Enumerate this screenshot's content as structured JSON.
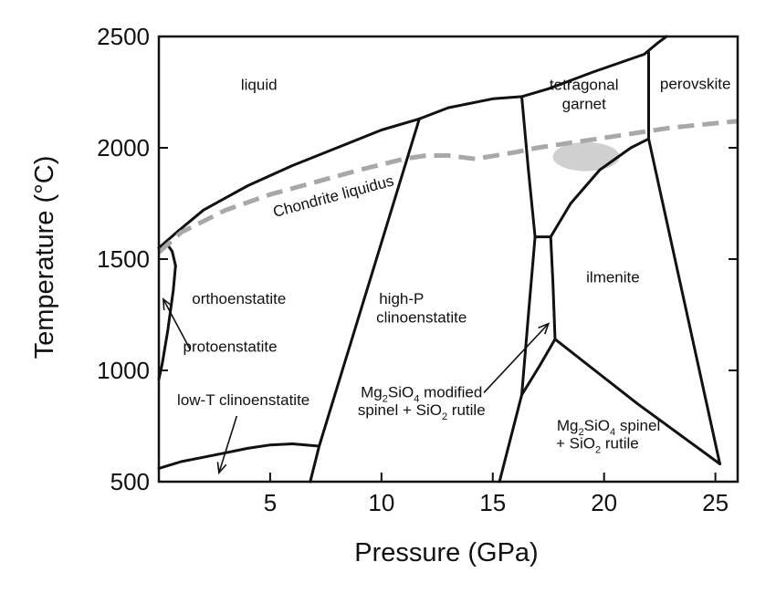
{
  "chart_data": {
    "type": "phase-diagram",
    "xlabel": "Pressure (GPa)",
    "ylabel": "Temperature (°C)",
    "xlim": [
      0,
      26
    ],
    "ylim": [
      500,
      2500
    ],
    "xticks": [
      5,
      10,
      15,
      20,
      25
    ],
    "yticks": [
      500,
      1000,
      1500,
      2000,
      2500
    ],
    "boundaries": [
      {
        "name": "liquidus",
        "points": [
          [
            0,
            1550
          ],
          [
            0.8,
            1620
          ],
          [
            2,
            1720
          ],
          [
            4,
            1830
          ],
          [
            6,
            1920
          ],
          [
            8,
            2000
          ],
          [
            10,
            2080
          ],
          [
            11.7,
            2130
          ],
          [
            13,
            2180
          ],
          [
            15,
            2220
          ],
          [
            16.3,
            2230
          ],
          [
            17.5,
            2265
          ],
          [
            19.5,
            2340
          ],
          [
            21.8,
            2420
          ],
          [
            22.4,
            2470
          ],
          [
            22.8,
            2500
          ]
        ]
      },
      {
        "name": "proto-ortho-upper",
        "points": [
          [
            0,
            1550
          ],
          [
            0.35,
            1570
          ],
          [
            0.6,
            1535
          ],
          [
            0.75,
            1470
          ]
        ]
      },
      {
        "name": "proto-ortho-lower",
        "points": [
          [
            0.75,
            1470
          ],
          [
            0.65,
            1360
          ],
          [
            0.4,
            1180
          ],
          [
            0.15,
            1030
          ],
          [
            0,
            960
          ]
        ]
      },
      {
        "name": "lowT-clino",
        "points": [
          [
            0,
            560
          ],
          [
            1,
            590
          ],
          [
            2,
            610
          ],
          [
            3,
            630
          ],
          [
            4,
            650
          ],
          [
            5,
            665
          ],
          [
            6,
            670
          ],
          [
            7.2,
            660
          ]
        ]
      },
      {
        "name": "ortho-highP",
        "points": [
          [
            6.8,
            500
          ],
          [
            7.2,
            660
          ],
          [
            11.7,
            2130
          ]
        ]
      },
      {
        "name": "highP-garnet",
        "points": [
          [
            16.3,
            2230
          ],
          [
            16.6,
            1900
          ],
          [
            16.9,
            1600
          ]
        ]
      },
      {
        "name": "highP-modified-spinel",
        "points": [
          [
            16.9,
            1600
          ],
          [
            16.6,
            1250
          ],
          [
            16.3,
            890
          ]
        ]
      },
      {
        "name": "modified-spinel-top",
        "points": [
          [
            16.9,
            1600
          ],
          [
            17.6,
            1600
          ]
        ]
      },
      {
        "name": "garnet-ilmenite",
        "points": [
          [
            17.6,
            1600
          ],
          [
            18.5,
            1750
          ],
          [
            19.8,
            1900
          ],
          [
            21.2,
            2000
          ],
          [
            22,
            2040
          ]
        ]
      },
      {
        "name": "modified-spinel-ilmenite",
        "points": [
          [
            17.6,
            1600
          ],
          [
            17.7,
            1400
          ],
          [
            17.8,
            1140
          ]
        ]
      },
      {
        "name": "modified-spinel-spinel",
        "points": [
          [
            16.3,
            890
          ],
          [
            17.1,
            1020
          ],
          [
            17.8,
            1140
          ]
        ]
      },
      {
        "name": "spinel-highP",
        "points": [
          [
            15.3,
            500
          ],
          [
            16.3,
            890
          ]
        ]
      },
      {
        "name": "ilmenite-spinel",
        "points": [
          [
            17.8,
            1140
          ],
          [
            21.5,
            850
          ],
          [
            25.2,
            580
          ]
        ]
      },
      {
        "name": "perovskite-ilmenite",
        "points": [
          [
            22,
            2430
          ],
          [
            22,
            2040
          ],
          [
            25.2,
            580
          ]
        ]
      }
    ],
    "series": [
      {
        "name": "Chondrite liquidus",
        "style": "dashed",
        "color": "#a8a8a8",
        "x": [
          0,
          1,
          3,
          5,
          7,
          9,
          11,
          12,
          13,
          14.2,
          16,
          17,
          19,
          21,
          23,
          26
        ],
        "y": [
          1530,
          1620,
          1720,
          1790,
          1845,
          1900,
          1950,
          1965,
          1965,
          1950,
          1980,
          2000,
          2030,
          2060,
          2090,
          2120
        ]
      }
    ],
    "shaded_region": {
      "cx": 19.2,
      "cy": 1960,
      "rx": 1.5,
      "ry": 65,
      "color": "#c8c8c8"
    },
    "labels": {
      "liquid": "liquid",
      "tetragonal": "tetragonal",
      "garnet": "garnet",
      "perovskite": "perovskite",
      "chondrite": "Chondrite liquidus",
      "orthoenstatite": "orthoenstatite",
      "highP": "high-P",
      "clinoenstatite": "clinoenstatite",
      "ilmenite": "ilmenite",
      "protoenstatite": "protoenstatite",
      "lowT": "low-T clinoenstatite",
      "mod1_a": "Mg",
      "mod1_s1": "2",
      "mod1_b": "SiO",
      "mod1_s2": "4",
      "mod1_c": " modified",
      "mod2_a": "spinel + SiO",
      "mod2_s": "2",
      "mod2_b": " rutile",
      "sp1_a": "Mg",
      "sp1_s1": "2",
      "sp1_b": "SiO",
      "sp1_s2": "4",
      "sp1_c": " spinel",
      "sp2_a": "+ SiO",
      "sp2_s": "2",
      "sp2_b": " rutile"
    },
    "label_positions": {
      "liquid": [
        4.5,
        2260
      ],
      "tetragonal": [
        19.1,
        2260
      ],
      "garnet": [
        19.1,
        2175
      ],
      "perovskite": [
        24.1,
        2265
      ],
      "chondrite": [
        7.9,
        1760
      ],
      "orthoenstatite": [
        3.6,
        1300
      ],
      "highP": [
        10.9,
        1300
      ],
      "clinoenstatite": [
        11.8,
        1215
      ],
      "ilmenite": [
        20.4,
        1395
      ],
      "protoenstatite": [
        3.2,
        1085
      ],
      "lowT": [
        3.8,
        845
      ],
      "mod1": [
        11.8,
        880
      ],
      "mod2": [
        11.8,
        800
      ],
      "sp1": [
        20.2,
        730
      ],
      "sp2": [
        19.7,
        650
      ]
    },
    "annotations": [
      {
        "name": "protoenstatite-arrow",
        "from": [
          1.4,
          1095
        ],
        "to": [
          0.2,
          1320
        ]
      },
      {
        "name": "modified-spinel-arrow",
        "from": [
          14.6,
          900
        ],
        "to": [
          17.5,
          1210
        ]
      },
      {
        "name": "lowT-arrow",
        "from": [
          3.5,
          795
        ],
        "to": [
          2.7,
          540
        ]
      }
    ]
  }
}
